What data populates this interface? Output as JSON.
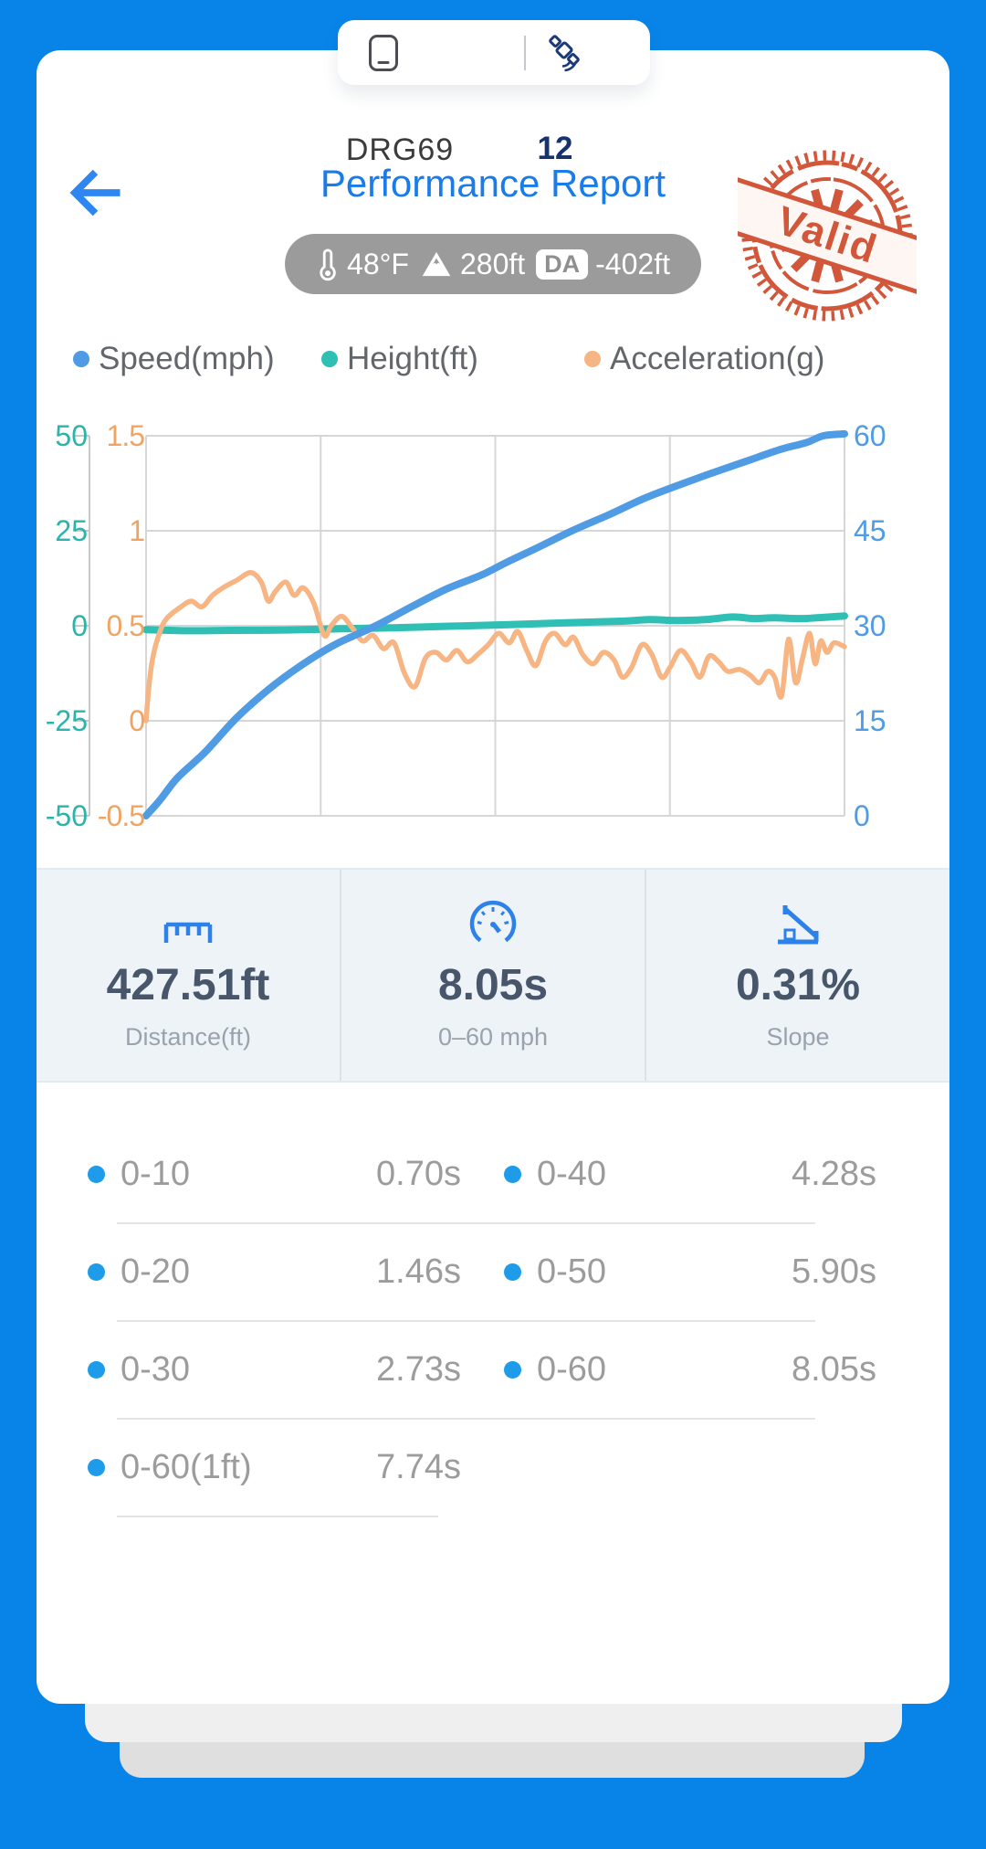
{
  "status_tab": {
    "device_label": "DRG69",
    "satellite_count": "12"
  },
  "header": {
    "title": "Performance Report"
  },
  "conditions": {
    "temperature": "48°F",
    "altitude": "280ft",
    "da_badge": "DA",
    "density_altitude": "-402ft"
  },
  "stamp": {
    "text": "Valid",
    "color": "#cf4a2b"
  },
  "legend": [
    {
      "label": "Speed(mph)",
      "color": "#4f9be4"
    },
    {
      "label": "Height(ft)",
      "color": "#2fbfb4"
    },
    {
      "label": "Acceleration(g)",
      "color": "#f6b583"
    }
  ],
  "chart": {
    "type": "line",
    "x_range": [
      0,
      1
    ],
    "grid": true,
    "axes": {
      "speed": {
        "label": "Speed(mph)",
        "min": 0,
        "max": 60,
        "side": "right",
        "color": "#4f9be4",
        "ticks": [
          "60",
          "45",
          "30",
          "15",
          "0"
        ]
      },
      "height": {
        "label": "Height(ft)",
        "min": -50,
        "max": 50,
        "side": "left",
        "color": "#2ab4aa",
        "ticks": [
          "50",
          "25",
          "0",
          "-25",
          "-50"
        ]
      },
      "accel": {
        "label": "Acceleration(g)",
        "min": -0.5,
        "max": 1.5,
        "side": "left",
        "color": "#efa463",
        "ticks": [
          "1.5",
          "1",
          "0.5",
          "0",
          "-0.5"
        ]
      }
    },
    "series": [
      {
        "name": "Height(ft)",
        "axis": "height",
        "color": "#2fbfb4",
        "width": 8,
        "points": [
          [
            0,
            -1
          ],
          [
            0.06,
            -1.3
          ],
          [
            0.12,
            -1.2
          ],
          [
            0.2,
            -1.1
          ],
          [
            0.28,
            -0.8
          ],
          [
            0.36,
            -0.5
          ],
          [
            0.44,
            -0.1
          ],
          [
            0.52,
            0.3
          ],
          [
            0.6,
            0.8
          ],
          [
            0.68,
            1.2
          ],
          [
            0.72,
            1.6
          ],
          [
            0.76,
            1.4
          ],
          [
            0.8,
            1.6
          ],
          [
            0.84,
            2.3
          ],
          [
            0.87,
            1.9
          ],
          [
            0.9,
            2.1
          ],
          [
            0.94,
            1.9
          ],
          [
            1,
            2.6
          ]
        ]
      },
      {
        "name": "Acceleration(g)",
        "axis": "accel",
        "color": "#f6b583",
        "width": 5.5,
        "points": [
          [
            0,
            0.0
          ],
          [
            0.004,
            0.18
          ],
          [
            0.01,
            0.34
          ],
          [
            0.02,
            0.47
          ],
          [
            0.03,
            0.54
          ],
          [
            0.05,
            0.6
          ],
          [
            0.065,
            0.63
          ],
          [
            0.08,
            0.6
          ],
          [
            0.095,
            0.66
          ],
          [
            0.11,
            0.7
          ],
          [
            0.13,
            0.74
          ],
          [
            0.15,
            0.78
          ],
          [
            0.165,
            0.73
          ],
          [
            0.175,
            0.63
          ],
          [
            0.185,
            0.68
          ],
          [
            0.2,
            0.73
          ],
          [
            0.212,
            0.66
          ],
          [
            0.225,
            0.7
          ],
          [
            0.24,
            0.62
          ],
          [
            0.255,
            0.45
          ],
          [
            0.265,
            0.5
          ],
          [
            0.28,
            0.55
          ],
          [
            0.295,
            0.49
          ],
          [
            0.31,
            0.42
          ],
          [
            0.325,
            0.45
          ],
          [
            0.34,
            0.38
          ],
          [
            0.355,
            0.41
          ],
          [
            0.37,
            0.25
          ],
          [
            0.385,
            0.18
          ],
          [
            0.4,
            0.33
          ],
          [
            0.415,
            0.36
          ],
          [
            0.43,
            0.32
          ],
          [
            0.445,
            0.37
          ],
          [
            0.46,
            0.31
          ],
          [
            0.475,
            0.35
          ],
          [
            0.49,
            0.4
          ],
          [
            0.505,
            0.46
          ],
          [
            0.52,
            0.41
          ],
          [
            0.532,
            0.47
          ],
          [
            0.545,
            0.37
          ],
          [
            0.558,
            0.29
          ],
          [
            0.572,
            0.42
          ],
          [
            0.585,
            0.46
          ],
          [
            0.6,
            0.4
          ],
          [
            0.612,
            0.44
          ],
          [
            0.625,
            0.35
          ],
          [
            0.64,
            0.3
          ],
          [
            0.655,
            0.36
          ],
          [
            0.67,
            0.32
          ],
          [
            0.682,
            0.23
          ],
          [
            0.695,
            0.28
          ],
          [
            0.71,
            0.4
          ],
          [
            0.724,
            0.35
          ],
          [
            0.738,
            0.23
          ],
          [
            0.75,
            0.28
          ],
          [
            0.765,
            0.37
          ],
          [
            0.78,
            0.31
          ],
          [
            0.793,
            0.23
          ],
          [
            0.806,
            0.34
          ],
          [
            0.82,
            0.31
          ],
          [
            0.833,
            0.26
          ],
          [
            0.85,
            0.27
          ],
          [
            0.865,
            0.24
          ],
          [
            0.878,
            0.2
          ],
          [
            0.89,
            0.26
          ],
          [
            0.9,
            0.23
          ],
          [
            0.91,
            0.13
          ],
          [
            0.92,
            0.43
          ],
          [
            0.93,
            0.2
          ],
          [
            0.94,
            0.33
          ],
          [
            0.95,
            0.46
          ],
          [
            0.958,
            0.3
          ],
          [
            0.966,
            0.42
          ],
          [
            0.975,
            0.36
          ],
          [
            0.985,
            0.41
          ],
          [
            1,
            0.39
          ]
        ]
      },
      {
        "name": "Speed(mph)",
        "axis": "speed",
        "color": "#4f9be4",
        "width": 8,
        "points": [
          [
            0,
            0
          ],
          [
            0.02,
            2.5
          ],
          [
            0.045,
            6
          ],
          [
            0.084,
            10
          ],
          [
            0.13,
            15.5
          ],
          [
            0.176,
            20
          ],
          [
            0.22,
            23.6
          ],
          [
            0.27,
            27
          ],
          [
            0.329,
            30
          ],
          [
            0.38,
            33
          ],
          [
            0.43,
            35.8
          ],
          [
            0.48,
            38
          ],
          [
            0.516,
            40
          ],
          [
            0.56,
            42.3
          ],
          [
            0.61,
            45
          ],
          [
            0.66,
            47.4
          ],
          [
            0.711,
            50
          ],
          [
            0.76,
            52.1
          ],
          [
            0.81,
            54.1
          ],
          [
            0.86,
            56
          ],
          [
            0.91,
            57.9
          ],
          [
            0.945,
            58.9
          ],
          [
            0.97,
            60
          ],
          [
            1,
            60.3
          ]
        ]
      }
    ]
  },
  "stats": [
    {
      "icon": "ruler-icon",
      "value": "427.51ft",
      "label": "Distance(ft)"
    },
    {
      "icon": "gauge-icon",
      "value": "8.05s",
      "label": "0–60 mph"
    },
    {
      "icon": "slope-icon",
      "value": "0.31%",
      "label": "Slope"
    }
  ],
  "ranges": [
    {
      "label": "0-10",
      "value": "0.70s"
    },
    {
      "label": "0-40",
      "value": "4.28s"
    },
    {
      "label": "0-20",
      "value": "1.46s"
    },
    {
      "label": "0-50",
      "value": "5.90s"
    },
    {
      "label": "0-30",
      "value": "2.73s"
    },
    {
      "label": "0-60",
      "value": "8.05s"
    },
    {
      "label": "0-60(1ft)",
      "value": "7.74s"
    }
  ],
  "colors": {
    "background": "#0884e8",
    "accent_blue": "#1a7ce9",
    "bullet_blue": "#1e9be9",
    "navy": "#16336e",
    "stamp_red": "#cf4a2b"
  }
}
